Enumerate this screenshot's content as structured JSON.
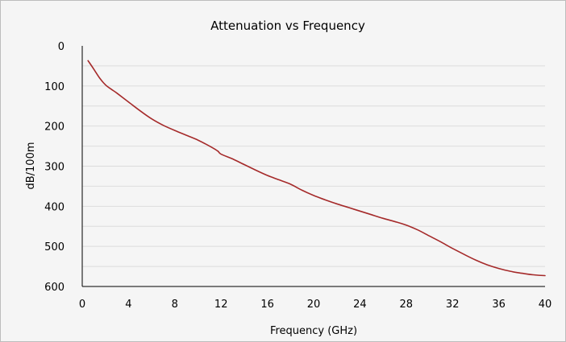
{
  "chart_data": {
    "type": "line",
    "title": "Attenuation vs Frequency",
    "xlabel": "Frequency (GHz)",
    "ylabel": "dB/100m",
    "xlim": [
      0,
      40
    ],
    "ylim": [
      0,
      600
    ],
    "y_inverted": true,
    "x_ticks": [
      0,
      4,
      8,
      12,
      16,
      20,
      24,
      28,
      32,
      36,
      40
    ],
    "y_ticks": [
      0,
      100,
      200,
      300,
      400,
      500,
      600
    ],
    "grid": {
      "horizontal": true,
      "vertical": false
    },
    "legend": "none",
    "series": [
      {
        "color": "#a52a2a",
        "x": [
          0.5,
          1,
          1.5,
          2,
          2.5,
          3,
          4,
          5,
          6,
          7,
          8,
          9,
          10,
          11,
          11.7,
          12,
          13,
          14,
          15,
          16,
          17,
          18,
          19,
          20,
          21,
          22,
          23,
          24,
          25,
          26,
          27,
          28,
          29,
          30,
          31,
          32,
          33,
          34,
          35,
          36,
          37,
          38,
          39,
          40
        ],
        "y": [
          37,
          58,
          80,
          97,
          108,
          118,
          140,
          162,
          182,
          198,
          211,
          223,
          235,
          250,
          262,
          270,
          282,
          296,
          310,
          323,
          334,
          345,
          360,
          373,
          384,
          394,
          403,
          412,
          421,
          430,
          438,
          447,
          459,
          474,
          489,
          505,
          520,
          534,
          546,
          555,
          562,
          567,
          571,
          573
        ]
      }
    ]
  }
}
